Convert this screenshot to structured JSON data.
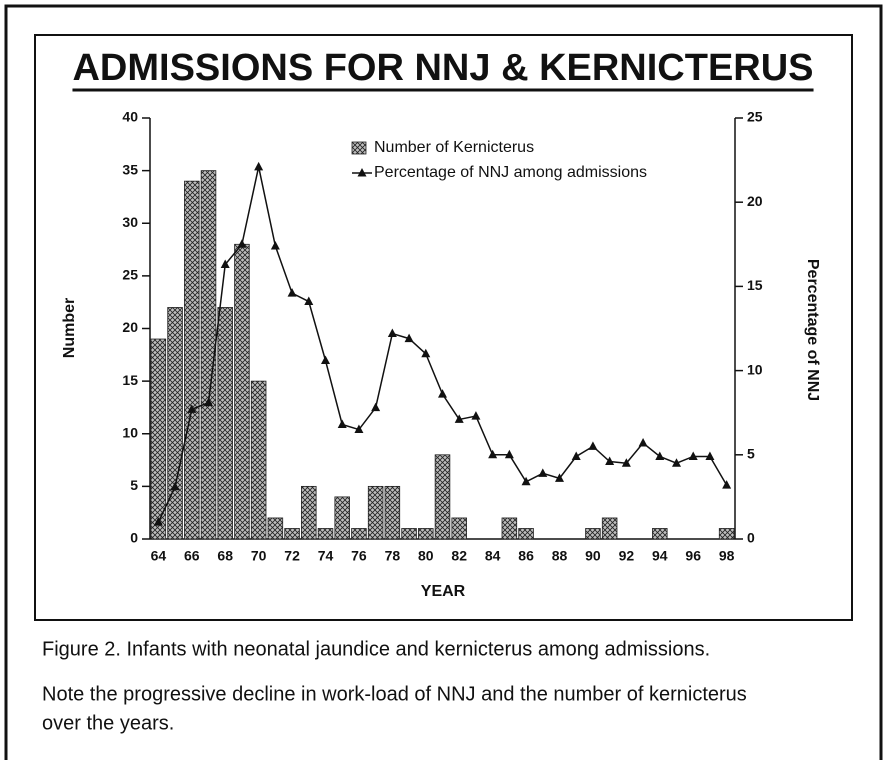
{
  "chart_data": {
    "type": "bar",
    "title": "ADMISSIONS FOR NNJ & KERNICTERUS",
    "xlabel": "YEAR",
    "ylabel": "Number",
    "y2label": "Percentage of NNJ",
    "categories": [
      "64",
      null,
      "66",
      null,
      "68",
      null,
      "70",
      null,
      "72",
      null,
      "74",
      null,
      "76",
      null,
      "78",
      null,
      "80",
      null,
      "82",
      null,
      "84",
      null,
      "86",
      null,
      "88",
      null,
      "90",
      null,
      "92",
      null,
      "94",
      null,
      "96",
      null,
      "98"
    ],
    "series": [
      {
        "name": "Number of Kernicterus",
        "type": "bar",
        "color": "#9a9a9a",
        "values": [
          19,
          22,
          34,
          35,
          22,
          28,
          15,
          2,
          1,
          5,
          1,
          4,
          1,
          5,
          5,
          1,
          1,
          8,
          2,
          0,
          0,
          2,
          1,
          0,
          0,
          0,
          1,
          2,
          0,
          0,
          1,
          0,
          0,
          0,
          1
        ]
      },
      {
        "name": "Percentage of NNJ among admissions",
        "type": "line",
        "axis": "y2",
        "color": "#111111",
        "values": [
          1.0,
          3.1,
          7.7,
          8.1,
          16.3,
          17.5,
          22.1,
          17.4,
          14.6,
          14.1,
          10.6,
          6.8,
          6.5,
          7.8,
          12.2,
          11.9,
          11.0,
          8.6,
          7.1,
          7.3,
          5.0,
          5.0,
          3.4,
          3.9,
          3.6,
          4.9,
          5.5,
          4.6,
          4.5,
          5.7,
          4.9,
          4.5,
          4.9,
          4.9,
          3.2
        ]
      }
    ],
    "ylim": [
      0,
      40
    ],
    "yticks": [
      0,
      5,
      10,
      15,
      20,
      25,
      30,
      35,
      40
    ],
    "y2lim": [
      0,
      25
    ],
    "y2ticks": [
      0,
      5,
      10,
      15,
      20,
      25
    ],
    "legend": "top-right"
  },
  "caption": [
    "Figure 2. Infants with neonatal jaundice and kernicterus among admissions.",
    "Note the progressive decline in work-load of NNJ and the number of kernicterus",
    "over the years."
  ]
}
